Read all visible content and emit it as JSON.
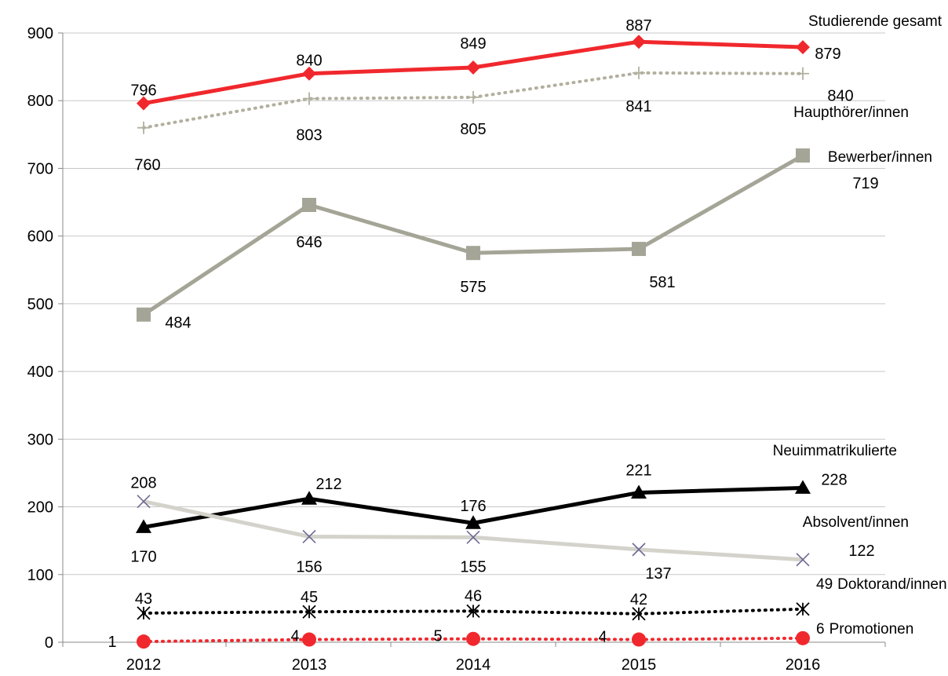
{
  "chart_data": {
    "type": "line",
    "categories": [
      "2012",
      "2013",
      "2014",
      "2015",
      "2016"
    ],
    "ylim": [
      0,
      900
    ],
    "yticks": [
      0,
      100,
      200,
      300,
      400,
      500,
      600,
      700,
      800,
      900
    ],
    "grid": true,
    "series": [
      {
        "key": "studierende",
        "name": "Studierende gesamt",
        "values": [
          796,
          840,
          849,
          887,
          879
        ],
        "color": "#f0282d",
        "style": "solid",
        "marker": "diamond"
      },
      {
        "key": "haupthoerer",
        "name": "Haupthörer/innen",
        "values": [
          760,
          803,
          805,
          841,
          840
        ],
        "color": "#b2b09e",
        "style": "dotted",
        "marker": "plus"
      },
      {
        "key": "bewerber",
        "name": "Bewerber/innen",
        "values": [
          484,
          646,
          575,
          581,
          719
        ],
        "color": "#a4a596",
        "style": "solid",
        "marker": "square"
      },
      {
        "key": "neuimmatrikulierte",
        "name": "Neuimmatrikulierte",
        "values": [
          170,
          212,
          176,
          221,
          228
        ],
        "color": "#000000",
        "style": "solid",
        "marker": "triangle"
      },
      {
        "key": "absolventen",
        "name": "Absolvent/innen",
        "values": [
          208,
          156,
          155,
          137,
          122
        ],
        "color": "#d4d3cb",
        "style": "solid",
        "marker": "x",
        "marker_color": "#6e6a96"
      },
      {
        "key": "doktoranden",
        "name": "Doktorand/innen",
        "values": [
          43,
          45,
          46,
          42,
          49
        ],
        "color": "#000000",
        "style": "dotted",
        "marker": "asterisk"
      },
      {
        "key": "promotionen",
        "name": "Promotionen",
        "values": [
          1,
          4,
          5,
          4,
          6
        ],
        "color": "#f0282d",
        "style": "dotted",
        "marker": "circle"
      }
    ]
  }
}
